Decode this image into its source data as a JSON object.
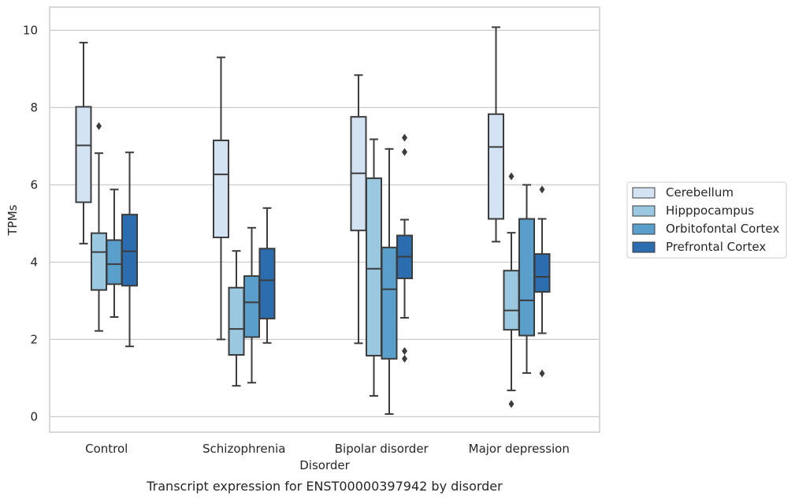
{
  "chart_data": {
    "type": "box",
    "title": "",
    "caption": "Transcript expression for ENST00000397942 by disorder",
    "xlabel": "Disorder",
    "ylabel": "TPMs",
    "ylim": [
      -0.4,
      10.6
    ],
    "yticks": [
      0,
      2,
      4,
      6,
      8,
      10
    ],
    "grid": "horizontal",
    "legend_position": "right",
    "categories": [
      "Control",
      "Schizophrenia",
      "Bipolar disorder",
      "Major depression"
    ],
    "series": [
      {
        "name": "Cerebellum",
        "color": "#d3e3f3",
        "boxes": [
          {
            "whisker_low": 4.48,
            "q1": 5.55,
            "median": 7.02,
            "q3": 8.02,
            "whisker_high": 9.68,
            "outliers": []
          },
          {
            "whisker_low": 2.0,
            "q1": 4.64,
            "median": 6.27,
            "q3": 7.15,
            "whisker_high": 9.3,
            "outliers": []
          },
          {
            "whisker_low": 1.9,
            "q1": 4.82,
            "median": 6.3,
            "q3": 7.76,
            "whisker_high": 8.84,
            "outliers": []
          },
          {
            "whisker_low": 4.53,
            "q1": 5.12,
            "median": 6.98,
            "q3": 7.83,
            "whisker_high": 10.08,
            "outliers": []
          }
        ]
      },
      {
        "name": "Hipppocampus",
        "color": "#9ac8e0",
        "boxes": [
          {
            "whisker_low": 2.22,
            "q1": 3.28,
            "median": 4.26,
            "q3": 4.75,
            "whisker_high": 6.82,
            "outliers": [
              7.52
            ]
          },
          {
            "whisker_low": 0.8,
            "q1": 1.6,
            "median": 2.27,
            "q3": 3.34,
            "whisker_high": 4.29,
            "outliers": []
          },
          {
            "whisker_low": 0.54,
            "q1": 1.58,
            "median": 3.83,
            "q3": 6.17,
            "whisker_high": 7.18,
            "outliers": []
          },
          {
            "whisker_low": 0.68,
            "q1": 2.25,
            "median": 2.75,
            "q3": 3.78,
            "whisker_high": 4.76,
            "outliers": [
              0.33,
              6.22
            ]
          }
        ]
      },
      {
        "name": "Orbitofontal Cortex",
        "color": "#5a9ecc",
        "boxes": [
          {
            "whisker_low": 2.58,
            "q1": 3.43,
            "median": 3.95,
            "q3": 4.57,
            "whisker_high": 5.88,
            "outliers": []
          },
          {
            "whisker_low": 0.88,
            "q1": 2.06,
            "median": 2.96,
            "q3": 3.64,
            "whisker_high": 4.89,
            "outliers": []
          },
          {
            "whisker_low": 0.07,
            "q1": 1.5,
            "median": 3.3,
            "q3": 4.38,
            "whisker_high": 6.93,
            "outliers": []
          },
          {
            "whisker_low": 1.13,
            "q1": 2.1,
            "median": 3.01,
            "q3": 5.12,
            "whisker_high": 6.0,
            "outliers": []
          }
        ]
      },
      {
        "name": "Prefrontal Cortex",
        "color": "#2b6dae",
        "boxes": [
          {
            "whisker_low": 1.82,
            "q1": 3.39,
            "median": 4.28,
            "q3": 5.23,
            "whisker_high": 6.84,
            "outliers": []
          },
          {
            "whisker_low": 1.91,
            "q1": 2.54,
            "median": 3.53,
            "q3": 4.35,
            "whisker_high": 5.4,
            "outliers": []
          },
          {
            "whisker_low": 2.56,
            "q1": 3.58,
            "median": 4.14,
            "q3": 4.69,
            "whisker_high": 5.1,
            "outliers": [
              1.5,
              1.7,
              6.85,
              7.22
            ]
          },
          {
            "whisker_low": 2.16,
            "q1": 3.23,
            "median": 3.62,
            "q3": 4.21,
            "whisker_high": 5.12,
            "outliers": [
              1.12,
              5.88
            ]
          }
        ]
      }
    ]
  }
}
